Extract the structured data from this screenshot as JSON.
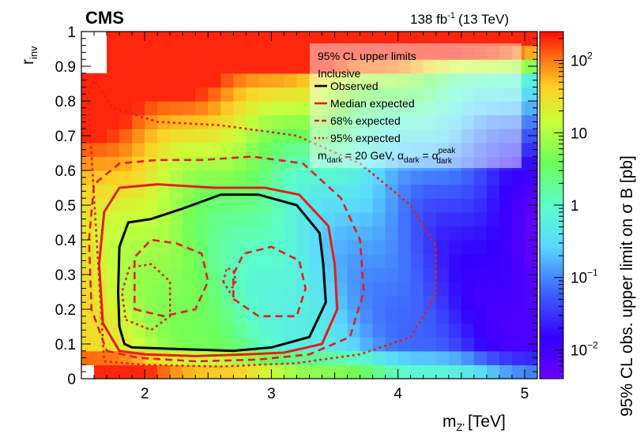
{
  "chart_data": {
    "type": "heatmap",
    "experiment": "CMS",
    "lumi_text": "138 fb",
    "lumi_exp": "-1",
    "lumi_energy": "(13 TeV)",
    "xlabel_main": "m",
    "xlabel_sub": "Z'",
    "xlabel_unit": "[TeV]",
    "ylabel_main": "r",
    "ylabel_sub": "inv",
    "zlabel": "95% CL obs. upper limit on σ B [pb]",
    "xlim": [
      1.5,
      5.1
    ],
    "ylim": [
      0,
      1
    ],
    "zlim": [
      0.004,
      250
    ],
    "zscale": "log",
    "x_ticks": [
      "2",
      "3",
      "4",
      "5"
    ],
    "y_ticks": [
      "0",
      "0.1",
      "0.2",
      "0.3",
      "0.4",
      "0.5",
      "0.6",
      "0.7",
      "0.8",
      "0.9",
      "1"
    ],
    "z_ticks": [
      {
        "base": "10",
        "exp": "2",
        "value": 100
      },
      {
        "base": "10",
        "exp": "",
        "value": 10
      },
      {
        "base": "1",
        "exp": "",
        "value": 1
      },
      {
        "base": "10",
        "exp": "−1",
        "value": 0.1
      },
      {
        "base": "10",
        "exp": "−2",
        "value": 0.01
      }
    ],
    "legend": {
      "position": "top-right",
      "header": [
        "95% CL upper limits",
        "Inclusive"
      ],
      "entries": [
        {
          "label": "Observed",
          "color": "#000000",
          "style": "solid"
        },
        {
          "label": "Median expected",
          "color": "#e0201b",
          "style": "solid"
        },
        {
          "label": "68% expected",
          "color": "#e0201b",
          "style": "dashed"
        },
        {
          "label": "95% expected",
          "color": "#e0201b",
          "style": "dotted"
        }
      ],
      "params": {
        "m_main": "m",
        "m_sub": "dark",
        "m_value": " = 20 GeV, α",
        "a_sub": "dark",
        "eq": " = α",
        "peak_sup": "peak",
        "peak_sub": "dark"
      }
    },
    "contours": [
      {
        "name": "Observed",
        "color": "#000000",
        "style": "solid",
        "points": [
          [
            1.84,
            0.1
          ],
          [
            1.9,
            0.09
          ],
          [
            2.3,
            0.085
          ],
          [
            2.7,
            0.08
          ],
          [
            3.0,
            0.09
          ],
          [
            3.3,
            0.12
          ],
          [
            3.43,
            0.22
          ],
          [
            3.41,
            0.33
          ],
          [
            3.38,
            0.42
          ],
          [
            3.2,
            0.5
          ],
          [
            2.9,
            0.53
          ],
          [
            2.6,
            0.53
          ],
          [
            2.3,
            0.49
          ],
          [
            2.05,
            0.46
          ],
          [
            1.87,
            0.45
          ],
          [
            1.8,
            0.38
          ],
          [
            1.79,
            0.25
          ],
          [
            1.8,
            0.15
          ]
        ]
      },
      {
        "name": "Median expected",
        "color": "#e0201b",
        "style": "solid",
        "points": [
          [
            1.8,
            0.08
          ],
          [
            2.0,
            0.07
          ],
          [
            2.4,
            0.065
          ],
          [
            2.8,
            0.07
          ],
          [
            3.1,
            0.075
          ],
          [
            3.4,
            0.1
          ],
          [
            3.52,
            0.2
          ],
          [
            3.5,
            0.33
          ],
          [
            3.45,
            0.44
          ],
          [
            3.22,
            0.53
          ],
          [
            2.95,
            0.55
          ],
          [
            2.55,
            0.55
          ],
          [
            2.1,
            0.56
          ],
          [
            1.8,
            0.55
          ],
          [
            1.68,
            0.48
          ],
          [
            1.64,
            0.33
          ],
          [
            1.67,
            0.16
          ]
        ]
      },
      {
        "name": "68% expected",
        "color": "#e0201b",
        "style": "dashed",
        "points": [
          [
            1.7,
            0.08
          ],
          [
            1.95,
            0.06
          ],
          [
            2.4,
            0.05
          ],
          [
            2.9,
            0.055
          ],
          [
            3.3,
            0.07
          ],
          [
            3.62,
            0.12
          ],
          [
            3.73,
            0.25
          ],
          [
            3.7,
            0.4
          ],
          [
            3.55,
            0.52
          ],
          [
            3.25,
            0.62
          ],
          [
            2.85,
            0.64
          ],
          [
            2.45,
            0.63
          ],
          [
            2.1,
            0.63
          ],
          [
            1.8,
            0.62
          ],
          [
            1.6,
            0.56
          ],
          [
            1.56,
            0.4
          ],
          [
            1.58,
            0.2
          ]
        ]
      },
      {
        "name": "68% expected",
        "color": "#e0201b",
        "style": "dashed",
        "points": [
          [
            1.92,
            0.2
          ],
          [
            2.15,
            0.18
          ],
          [
            2.4,
            0.2
          ],
          [
            2.5,
            0.28
          ],
          [
            2.45,
            0.36
          ],
          [
            2.25,
            0.39
          ],
          [
            2.05,
            0.4
          ],
          [
            1.92,
            0.35
          ]
        ]
      },
      {
        "name": "68% expected",
        "color": "#e0201b",
        "style": "dashed",
        "points": [
          [
            2.7,
            0.23
          ],
          [
            2.9,
            0.18
          ],
          [
            3.2,
            0.18
          ],
          [
            3.27,
            0.26
          ],
          [
            3.22,
            0.34
          ],
          [
            3.0,
            0.38
          ],
          [
            2.78,
            0.36
          ],
          [
            2.7,
            0.3
          ]
        ]
      },
      {
        "name": "95% expected",
        "color": "#e0201b",
        "style": "dotted",
        "points": [
          [
            1.68,
            0.05
          ],
          [
            2.0,
            0.04
          ],
          [
            2.6,
            0.035
          ],
          [
            3.2,
            0.045
          ],
          [
            3.7,
            0.07
          ],
          [
            4.1,
            0.12
          ],
          [
            4.3,
            0.24
          ],
          [
            4.3,
            0.38
          ],
          [
            4.1,
            0.5
          ],
          [
            3.7,
            0.62
          ],
          [
            3.2,
            0.7
          ],
          [
            2.6,
            0.73
          ],
          [
            2.1,
            0.74
          ],
          [
            1.75,
            0.78
          ],
          [
            1.6,
            0.86
          ],
          [
            1.55,
            0.82
          ]
        ]
      },
      {
        "name": "95% expected",
        "color": "#e0201b",
        "style": "dotted",
        "points": [
          [
            1.85,
            0.17
          ],
          [
            2.05,
            0.14
          ],
          [
            2.2,
            0.18
          ],
          [
            2.2,
            0.28
          ],
          [
            2.05,
            0.33
          ],
          [
            1.88,
            0.32
          ],
          [
            1.82,
            0.25
          ]
        ]
      },
      {
        "name": "95% expected",
        "color": "#e0201b",
        "style": "dotted",
        "points": [
          [
            2.62,
            0.28
          ],
          [
            2.67,
            0.25
          ],
          [
            2.72,
            0.28
          ],
          [
            2.7,
            0.31
          ],
          [
            2.65,
            0.32
          ]
        ]
      }
    ]
  }
}
